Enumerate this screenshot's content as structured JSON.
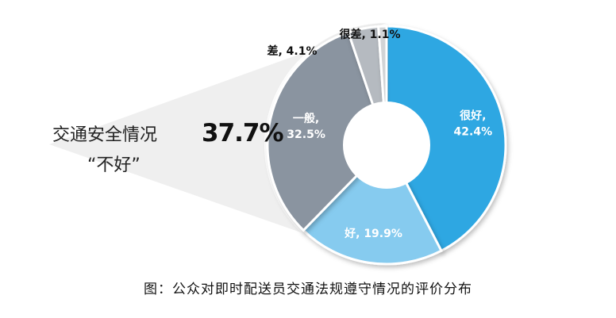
{
  "chart_data": {
    "type": "pie",
    "categories": [
      "很好",
      "好",
      "一般",
      "差",
      "很差"
    ],
    "values": [
      42.4,
      19.9,
      32.5,
      4.1,
      1.1
    ],
    "colors": [
      "#2ea7e2",
      "#86cbef",
      "#8a94a0",
      "#b5bac0",
      "#d2d4d6"
    ],
    "data_labels": [
      "很好, 42.4%",
      "好, 19.9%",
      "一般, 32.5%",
      "差, 4.1%",
      "很差, 1.1%"
    ],
    "donut": true,
    "callout": {
      "line1": "交通安全情况",
      "line2": "“不好”",
      "value_label": "37.7%",
      "grouped_categories": [
        "一般",
        "差",
        "很差"
      ]
    },
    "caption": "图：公众对即时配送员交通法规遵守情况的评价分布"
  }
}
